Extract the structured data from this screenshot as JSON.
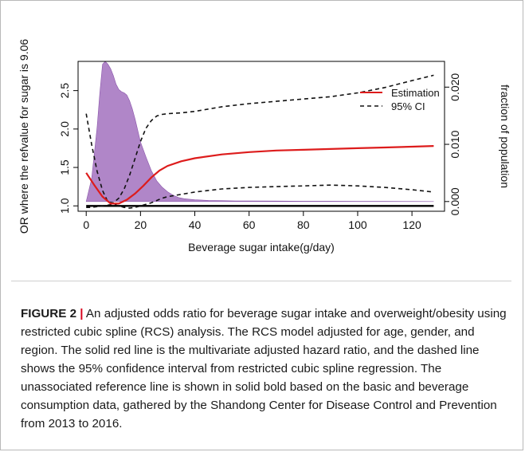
{
  "chart_data": {
    "type": "line",
    "xlabel": "Beverage sugar intake(g/day)",
    "ylabel": "OR where the refvalue for sugar is 9.06",
    "y2label": "fraction of population",
    "xlim": [
      -3,
      132
    ],
    "ylim": [
      0.93,
      2.88
    ],
    "y2lim": [
      -0.0017,
      0.0245
    ],
    "xticks": [
      "0",
      "20",
      "40",
      "60",
      "80",
      "100",
      "120"
    ],
    "yticks": [
      "1.0",
      "1.5",
      "2.0",
      "2.5"
    ],
    "y2ticks": [
      "0.000",
      "0.010",
      "0.020"
    ],
    "legend_position": "top-right",
    "series": [
      {
        "name": "Estimation",
        "style": "solid",
        "color": "#dd1c1c",
        "x": [
          0,
          3,
          6,
          9,
          12,
          15,
          18,
          21,
          24,
          27,
          30,
          35,
          40,
          50,
          60,
          70,
          80,
          90,
          100,
          110,
          120,
          128
        ],
        "y": [
          1.43,
          1.27,
          1.12,
          1.03,
          1.03,
          1.08,
          1.16,
          1.26,
          1.37,
          1.46,
          1.52,
          1.58,
          1.62,
          1.67,
          1.7,
          1.72,
          1.73,
          1.74,
          1.75,
          1.76,
          1.77,
          1.78
        ]
      },
      {
        "name": "95% CI",
        "style": "dashed",
        "color": "#111111",
        "x": [
          0,
          2,
          4,
          6,
          8,
          10,
          12,
          14,
          16,
          18,
          20,
          22,
          24,
          26,
          28,
          30,
          35,
          40,
          50,
          60,
          70,
          80,
          90,
          100,
          110,
          120,
          128
        ],
        "y": [
          2.2,
          1.8,
          1.45,
          1.2,
          1.05,
          1.04,
          1.1,
          1.22,
          1.4,
          1.62,
          1.84,
          2.01,
          2.11,
          2.17,
          2.19,
          2.2,
          2.21,
          2.23,
          2.29,
          2.33,
          2.36,
          2.39,
          2.42,
          2.47,
          2.54,
          2.63,
          2.7
        ]
      },
      {
        "name": "95% CI lower",
        "style": "dashed",
        "color": "#111111",
        "x": [
          0,
          2,
          4,
          6,
          8,
          10,
          12,
          14,
          16,
          18,
          20,
          22,
          24,
          26,
          28,
          30,
          35,
          40,
          50,
          60,
          70,
          80,
          90,
          100,
          110,
          120,
          128
        ],
        "y": [
          0.98,
          0.98,
          0.99,
          1.0,
          1.01,
          1.02,
          1.0,
          0.98,
          0.97,
          0.98,
          1.0,
          1.02,
          1.04,
          1.07,
          1.1,
          1.12,
          1.15,
          1.18,
          1.22,
          1.24,
          1.25,
          1.26,
          1.27,
          1.26,
          1.24,
          1.21,
          1.18
        ]
      },
      {
        "name": "Reference",
        "style": "solid-bold",
        "color": "#000000",
        "x": [
          0,
          128
        ],
        "y": [
          1.0,
          1.0
        ]
      }
    ],
    "density": {
      "axis": "right",
      "color": "#9a64b8",
      "x": [
        0,
        2,
        4,
        5,
        6,
        7,
        8,
        9,
        10,
        11,
        12,
        13,
        14,
        15,
        16,
        17,
        18,
        19,
        20,
        22,
        24,
        26,
        28,
        30,
        32,
        34,
        36,
        38,
        40,
        45,
        50,
        55,
        60,
        70,
        80,
        90,
        100,
        110,
        120,
        128
      ],
      "y": [
        0.0,
        0.004,
        0.013,
        0.019,
        0.024,
        0.0245,
        0.024,
        0.0232,
        0.022,
        0.0205,
        0.0196,
        0.0192,
        0.019,
        0.0186,
        0.0176,
        0.0162,
        0.0144,
        0.0124,
        0.0104,
        0.0078,
        0.0054,
        0.0036,
        0.0025,
        0.0017,
        0.0011,
        0.0007,
        0.0005,
        0.0004,
        0.0003,
        0.0002,
        0.00015,
        0.0001,
        0.0001,
        8e-05,
        6e-05,
        5e-05,
        4e-05,
        3e-05,
        2e-05,
        0.0
      ]
    }
  },
  "caption": {
    "label": "FIGURE 2",
    "separator": "|",
    "text": " An adjusted odds ratio for beverage sugar intake and overweight/obesity using restricted cubic spline (RCS) analysis. The RCS model adjusted for age, gender, and region. The solid red line is the multivariate adjusted hazard ratio, and the dashed line shows the 95% confidence interval from restricted cubic spline regression. The unassociated reference line is shown in solid bold based on the basic and beverage consumption data, gathered by the Shandong Center for Disease Control and Prevention from 2013 to 2016."
  }
}
